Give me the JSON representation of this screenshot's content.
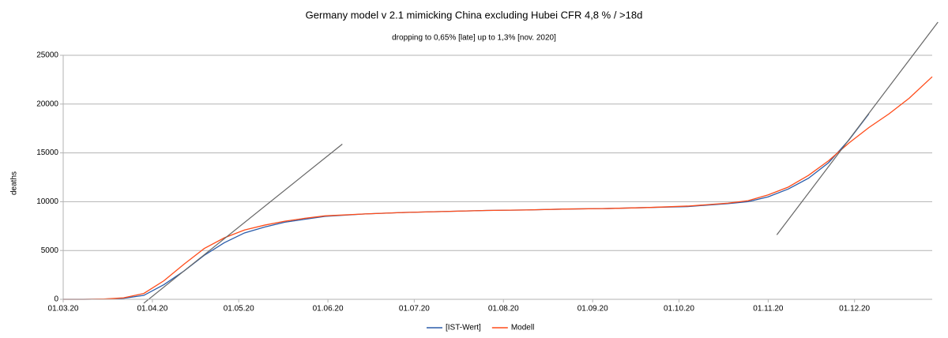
{
  "chart_data": {
    "type": "line",
    "title": "Germany model v 2.1   mimicking China excluding Hubei  CFR 4,8 % / >18d",
    "subtitle": "dropping to 0,65% [late] up to 1,3% [nov. 2020]",
    "y_label": "deaths",
    "x": [
      "01.03.20",
      "08.03.20",
      "15.03.20",
      "22.03.20",
      "29.03.20",
      "05.04.20",
      "12.04.20",
      "19.04.20",
      "26.04.20",
      "03.05.20",
      "10.05.20",
      "17.05.20",
      "24.05.20",
      "31.05.20",
      "14.06.20",
      "28.06.20",
      "12.07.20",
      "26.07.20",
      "09.08.20",
      "23.08.20",
      "06.09.20",
      "20.09.20",
      "04.10.20",
      "18.10.20",
      "25.10.20",
      "01.11.20",
      "08.11.20",
      "15.11.20",
      "22.11.20",
      "29.11.20",
      "06.12.20",
      "13.12.20",
      "20.12.20",
      "28.12.20"
    ],
    "series": [
      {
        "name": "[IST-Wert]",
        "color": "#2a5caa",
        "values": [
          0,
          0,
          20,
          100,
          400,
          1500,
          2900,
          4500,
          5800,
          6800,
          7400,
          7900,
          8200,
          8500,
          8750,
          8900,
          9000,
          9100,
          9150,
          9250,
          9300,
          9400,
          9500,
          9800,
          10000,
          10500,
          11300,
          12400,
          14000,
          16300,
          19000,
          null,
          null,
          null
        ]
      },
      {
        "name": "Modell",
        "color": "#ff4c1a",
        "values": [
          0,
          0,
          30,
          150,
          600,
          1900,
          3600,
          5200,
          6300,
          7100,
          7600,
          8000,
          8300,
          8550,
          8750,
          8900,
          9000,
          9100,
          9150,
          9250,
          9300,
          9400,
          9550,
          9850,
          10100,
          10700,
          11500,
          12700,
          14200,
          16000,
          17600,
          19000,
          20600,
          22800
        ]
      }
    ],
    "trend_lines": [
      {
        "color": "#666666",
        "x": [
          "29.03.20",
          "06.06.20"
        ],
        "values": [
          -400,
          15900
        ]
      },
      {
        "color": "#666666",
        "x": [
          "04.11.20",
          "30.12.20"
        ],
        "values": [
          6600,
          28400
        ]
      }
    ],
    "xlim": [
      "01.03.20",
      "28.12.20"
    ],
    "xticks": [
      "01.03.20",
      "01.04.20",
      "01.05.20",
      "01.06.20",
      "01.07.20",
      "01.08.20",
      "01.09.20",
      "01.10.20",
      "01.11.20",
      "01.12.20"
    ],
    "ylim": [
      0,
      25000
    ],
    "yticks": [
      0,
      5000,
      10000,
      15000,
      20000,
      25000
    ],
    "grid": true,
    "legend": "bottom"
  }
}
